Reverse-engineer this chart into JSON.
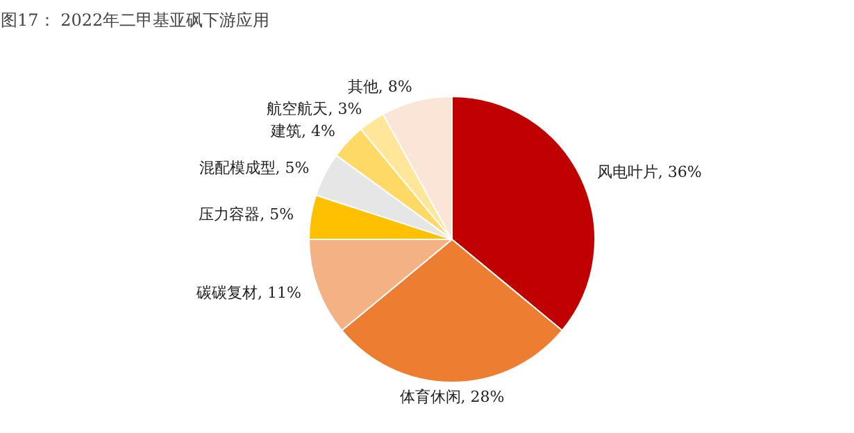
{
  "chart_data": {
    "type": "pie",
    "title": "图17：  2022年二甲基亚砜下游应用",
    "categories": [
      "风电叶片",
      "体育休闲",
      "碳碳复材",
      "压力容器",
      "混配模成型",
      "建筑",
      "航空航天",
      "其他"
    ],
    "values": [
      36,
      28,
      11,
      5,
      5,
      4,
      3,
      8
    ],
    "value_labels": [
      "36%",
      "28%",
      "11%",
      "5%",
      "5%",
      "4%",
      "3%",
      "8%"
    ],
    "colors": [
      "#c00000",
      "#ed7d31",
      "#f4b183",
      "#ffc000",
      "#e7e6e6",
      "#ffd966",
      "#ffe699",
      "#fbe5d6"
    ]
  }
}
